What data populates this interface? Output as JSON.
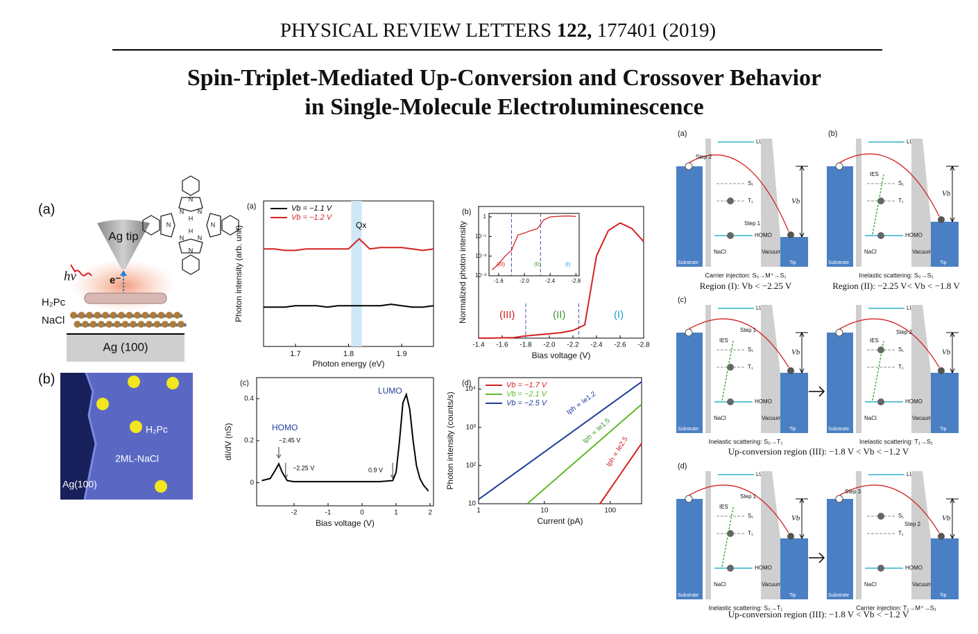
{
  "header": {
    "journal": "PHYSICAL REVIEW LETTERS",
    "volume": "122,",
    "article": "177401 (2019)"
  },
  "title": [
    "Spin-Triplet-Mediated Up-Conversion and Crossover Behavior",
    "in Single-Molecule Electroluminescence"
  ],
  "figure1": {
    "panel_a": "(a)",
    "tip": "Ag tip",
    "photon": "hν",
    "electron": "e⁻",
    "molecule": "H₂Pc",
    "nacl": "NaCl",
    "substrate": "Ag (100)",
    "atoms": [
      "N",
      "N",
      "N",
      "N",
      "N",
      "N",
      "N",
      "N",
      "H",
      "H"
    ],
    "panel_b": "(b)",
    "image_labels": [
      "H₂Pc",
      "2ML-NaCl",
      "Ag(100)"
    ]
  },
  "chart_data": [
    {
      "type": "line",
      "panel": "(a)",
      "x_label": "Photon energy (eV)",
      "y_label": "Photon intensity (arb. unit)",
      "xlim": [
        1.64,
        1.96
      ],
      "xticks": [
        1.7,
        1.8,
        1.9
      ],
      "ylim": [
        0,
        1
      ],
      "band": [
        1.805,
        1.825
      ],
      "x": [
        1.64,
        1.66,
        1.68,
        1.7,
        1.72,
        1.74,
        1.76,
        1.78,
        1.8,
        1.82,
        1.84,
        1.86,
        1.88,
        1.9,
        1.92,
        1.94,
        1.96
      ],
      "series": [
        {
          "name": "Vb = −1.1 V",
          "color": "#000000",
          "values": [
            0.27,
            0.27,
            0.27,
            0.28,
            0.28,
            0.28,
            0.27,
            0.28,
            0.28,
            0.28,
            0.28,
            0.28,
            0.29,
            0.28,
            0.27,
            0.27,
            0.28
          ]
        },
        {
          "name": "Vb = −1.2 V",
          "color": "#d42020",
          "values": [
            0.67,
            0.67,
            0.66,
            0.66,
            0.67,
            0.67,
            0.67,
            0.67,
            0.67,
            0.74,
            0.67,
            0.68,
            0.68,
            0.68,
            0.67,
            0.66,
            0.67
          ]
        }
      ],
      "annotations": [
        "Qx"
      ]
    },
    {
      "type": "line",
      "panel": "(b)",
      "x_label": "Bias voltage (V)",
      "y_label": "Normalized photon intensity",
      "xlim": [
        -1.4,
        -2.8
      ],
      "xticks": [
        -1.4,
        -1.6,
        -1.8,
        {
          "value": -2,
          "label": "-2.0"
        },
        -2.2,
        -2.4,
        -2.6,
        -2.8
      ],
      "ylim": [
        0,
        1.2
      ],
      "markers": [
        -1.8,
        -2.25
      ],
      "x": [
        -1.4,
        -1.5,
        -1.6,
        -1.7,
        -1.8,
        -1.9,
        -2.0,
        -2.1,
        -2.2,
        -2.3,
        -2.4,
        -2.5,
        -2.6,
        -2.7,
        -2.8
      ],
      "series": [
        {
          "color": "#d42020",
          "values": [
            0,
            0,
            0.003,
            0.005,
            0.02,
            0.03,
            0.04,
            0.05,
            0.07,
            0.12,
            0.75,
            0.98,
            1.05,
            1.0,
            0.88
          ]
        }
      ],
      "annotations": [
        "(III)",
        "(II)",
        "(I)"
      ]
    },
    {
      "type": "line",
      "xlim": [
        -1.45,
        -2.85
      ],
      "xticks": [
        -1.6,
        {
          "value": -2,
          "label": "-2.0"
        },
        -2.4,
        -2.8
      ],
      "ylim": [
        0.001,
        1.5
      ],
      "log_y": true,
      "yticks": [
        {
          "value": 0.001,
          "label": "10⁻³"
        },
        {
          "value": 0.01,
          "label": "10⁻²"
        },
        {
          "value": 0.1,
          "label": "10⁻¹"
        },
        1
      ],
      "markers": [
        -1.8,
        -2.25
      ],
      "x": [
        -1.5,
        -1.6,
        -1.7,
        -1.8,
        -1.9,
        -2.0,
        -2.1,
        -2.2,
        -2.3,
        -2.4,
        -2.5,
        -2.6,
        -2.7,
        -2.8
      ],
      "series": [
        {
          "color": "#d42020",
          "values": [
            0.002,
            0.004,
            0.01,
            0.02,
            0.12,
            0.15,
            0.2,
            0.25,
            0.7,
            1.0,
            1.05,
            1.1,
            1.1,
            1.05
          ]
        }
      ],
      "annotations": [
        "(III)",
        "(II)",
        "(I)"
      ]
    },
    {
      "type": "line",
      "panel": "(c)",
      "x_label": "Bias voltage (V)",
      "y_label": "dI/dV (nS)",
      "xlim": [
        -3.1,
        2.1
      ],
      "xticks": [
        -2,
        -1,
        0,
        1,
        2
      ],
      "ylim": [
        -0.11,
        0.5
      ],
      "yticks": [
        0,
        0.2,
        0.4
      ],
      "arrows": [
        -2.45,
        -2.25,
        0.9
      ],
      "x": [
        -2.95,
        -2.7,
        -2.55,
        -2.45,
        -2.35,
        -2.2,
        -2,
        -1,
        0,
        0.5,
        0.9,
        1.0,
        1.1,
        1.2,
        1.3,
        1.4,
        1.5,
        1.6,
        1.7,
        1.8,
        1.95
      ],
      "series": [
        {
          "color": "#000000",
          "values": [
            0.01,
            0.02,
            0.06,
            0.09,
            0.05,
            0.01,
            0.005,
            0.005,
            0.005,
            0.005,
            0.01,
            0.05,
            0.2,
            0.38,
            0.42,
            0.35,
            0.2,
            0.08,
            0.02,
            -0.01,
            -0.04
          ]
        }
      ],
      "annotations": [
        "HOMO",
        "LUMO",
        "−2.45 V",
        "−2.25 V",
        "0.9 V"
      ]
    },
    {
      "type": "line",
      "panel": "(d)",
      "x_label": "Current (pA)",
      "y_label": "Photon intensity  (counts/s)",
      "xlim": [
        1,
        300
      ],
      "xticks": [
        1,
        10,
        100
      ],
      "log_x": true,
      "ylim": [
        10,
        20000
      ],
      "log_y": true,
      "yticks": [
        10,
        {
          "value": 100,
          "label": "10²"
        },
        {
          "value": 1000,
          "label": "10³"
        },
        {
          "value": 10000,
          "label": "10⁴"
        }
      ],
      "series": [
        {
          "name": "Vb = −1.7 V",
          "color": "#d42020",
          "x": [
            70,
            300
          ],
          "values": [
            10,
            380
          ]
        },
        {
          "name": "Vb = −2.1 V",
          "color": "#5cb82a",
          "x": [
            5.5,
            300
          ],
          "values": [
            10,
            4000
          ]
        },
        {
          "name": "Vb = −2.5 V",
          "color": "#1f3c9a",
          "x": [
            1,
            300
          ],
          "values": [
            13,
            15500
          ]
        }
      ],
      "annotations": [
        "Iph ∝ Ie2.5",
        "Iph ∝ Ie1.5",
        "Iph ∝ Ie1.2"
      ]
    }
  ],
  "energy_diagrams": [
    {
      "panel": "(a)",
      "lumo": "LUMO",
      "s1": "S₁",
      "t1": "T₁",
      "homo": "HOMO",
      "nacl": "NaCl",
      "vacuum": "Vacuum",
      "substrate": "Substrate",
      "tip": "Tip",
      "vb": "Vb",
      "steps": [
        "Step 2",
        "Step 1"
      ],
      "caption": "Carrier injection: S₀→M⁺→S₁",
      "region": "Region (I): Vb < −2.25 V"
    },
    {
      "panel": "(b)",
      "lumo": "LUMO",
      "s1": "S₁",
      "t1": "T₁",
      "homo": "HOMO",
      "nacl": "NaCl",
      "vacuum": "Vacuum",
      "substrate": "Substrate",
      "tip": "Tip",
      "vb": "Vb",
      "steps": [],
      "ies": "IES",
      "caption": "Inelastic scattering: S₀→S₁",
      "region": "Region (II): −2.25 V< Vb < −1.8 V"
    },
    {
      "panel": "(c)",
      "lumo": "LUMO",
      "s1": "S₁",
      "t1": "T₁",
      "homo": "HOMO",
      "nacl": "NaCl",
      "vacuum": "Vacuum",
      "substrate": "Substrate",
      "tip": "Tip",
      "vb": "Vb",
      "steps": [
        "Step 1"
      ],
      "ies": "IES",
      "caption": "Inelastic scattering: S₀→T₁"
    },
    {
      "lumo": "LUMO",
      "s1": "S₁",
      "t1": "T₁",
      "homo": "HOMO",
      "nacl": "NaCl",
      "vacuum": "Vacuum",
      "substrate": "Substrate",
      "tip": "Tip",
      "vb": "Vb",
      "steps": [
        "Step 2"
      ],
      "ies": "IES",
      "caption": "Inelastic scattering: T₁→S₁"
    },
    {
      "panel": "(d)",
      "lumo": "LUMO",
      "s1": "S₁",
      "t1": "T₁",
      "homo": "HOMO",
      "nacl": "NaCl",
      "vacuum": "Vacuum",
      "substrate": "Substrate",
      "tip": "Tip",
      "vb": "Vb",
      "steps": [
        "Step 1"
      ],
      "ies": "IES",
      "caption": "Inelastic scattering: S₀→T₁"
    },
    {
      "lumo": "LUMO",
      "s1": "S₁",
      "t1": "T₁",
      "homo": "HOMO",
      "nacl": "NaCl",
      "vacuum": "Vacuum",
      "substrate": "Substrate",
      "tip": "Tip",
      "vb": "Vb",
      "steps": [
        "Step 3",
        "Step 2"
      ],
      "caption": "Carrier injection: T₁→M⁺→S₁"
    }
  ],
  "row_captions": [
    "Up-conversion region (III): −1.8 V < Vb < −1.2 V",
    "Up-conversion region (III): −1.8 V < Vb < −1.2 V"
  ]
}
